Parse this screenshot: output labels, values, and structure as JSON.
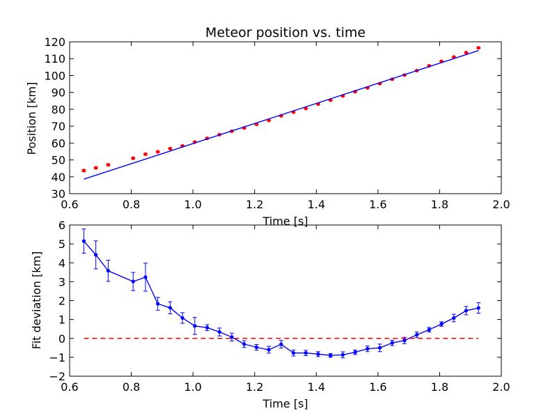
{
  "chart_data": [
    {
      "type": "scatter",
      "title": "Meteor position vs. time",
      "xlabel": "Time [s]",
      "ylabel": "Position [km]",
      "xlim": [
        0.6,
        2.0
      ],
      "ylim": [
        30,
        120
      ],
      "xticks": [
        "0.6",
        "0.8",
        "1.0",
        "1.2",
        "1.4",
        "1.6",
        "1.8",
        "2.0"
      ],
      "yticks": [
        "30",
        "40",
        "50",
        "60",
        "70",
        "80",
        "90",
        "100",
        "110",
        "120"
      ],
      "grid": false,
      "series": [
        {
          "kind": "points-with-errorbars",
          "color": "#ff0000",
          "x": [
            0.646,
            0.685,
            0.725,
            0.806,
            0.846,
            0.886,
            0.926,
            0.966,
            1.006,
            1.046,
            1.086,
            1.126,
            1.166,
            1.206,
            1.246,
            1.286,
            1.326,
            1.366,
            1.406,
            1.446,
            1.486,
            1.526,
            1.566,
            1.606,
            1.646,
            1.686,
            1.726,
            1.766,
            1.806,
            1.846,
            1.886,
            1.926
          ],
          "y": [
            43.7,
            45.3,
            47.1,
            51.0,
            53.4,
            54.8,
            56.7,
            58.3,
            60.6,
            62.8,
            65.0,
            67.0,
            68.9,
            71.1,
            73.4,
            76.1,
            78.3,
            80.5,
            83.1,
            85.4,
            87.9,
            90.4,
            92.7,
            95.2,
            97.8,
            100.3,
            102.9,
            105.8,
            108.4,
            111.0,
            113.6,
            116.4
          ],
          "yerr": [
            0.6,
            0.6,
            0.6,
            0.5,
            0.5,
            0.4,
            0.4,
            0.3,
            0.3,
            0.3,
            0.3,
            0.3,
            0.3,
            0.3,
            0.3,
            0.3,
            0.3,
            0.3,
            0.3,
            0.3,
            0.3,
            0.3,
            0.3,
            0.3,
            0.3,
            0.3,
            0.3,
            0.3,
            0.3,
            0.3,
            0.3,
            0.3
          ]
        },
        {
          "kind": "line",
          "color": "#0000ff",
          "x": [
            0.646,
            1.926
          ],
          "y": [
            38.6,
            114.8
          ]
        }
      ]
    },
    {
      "type": "line",
      "title": "",
      "xlabel": "Time [s]",
      "ylabel": "Fit deviation [km]",
      "xlim": [
        0.6,
        2.0
      ],
      "ylim": [
        -2,
        6
      ],
      "xticks": [
        "0.6",
        "0.8",
        "1.0",
        "1.2",
        "1.4",
        "1.6",
        "1.8",
        "2.0"
      ],
      "yticks": [
        "−2",
        "−1",
        "0",
        "1",
        "2",
        "3",
        "4",
        "5",
        "6"
      ],
      "grid": false,
      "series": [
        {
          "kind": "line-with-errorbars",
          "color": "#0000ff",
          "x": [
            0.646,
            0.685,
            0.725,
            0.806,
            0.846,
            0.886,
            0.926,
            0.966,
            1.006,
            1.046,
            1.086,
            1.126,
            1.166,
            1.206,
            1.246,
            1.286,
            1.326,
            1.366,
            1.406,
            1.446,
            1.486,
            1.526,
            1.566,
            1.606,
            1.646,
            1.686,
            1.726,
            1.766,
            1.806,
            1.846,
            1.886,
            1.926
          ],
          "y": [
            5.15,
            4.42,
            3.58,
            3.01,
            3.24,
            1.83,
            1.62,
            1.08,
            0.66,
            0.57,
            0.34,
            0.07,
            -0.3,
            -0.47,
            -0.6,
            -0.31,
            -0.77,
            -0.77,
            -0.83,
            -0.9,
            -0.87,
            -0.73,
            -0.55,
            -0.5,
            -0.24,
            -0.11,
            0.19,
            0.46,
            0.76,
            1.08,
            1.47,
            1.61
          ],
          "yerr": [
            0.64,
            0.74,
            0.56,
            0.48,
            0.74,
            0.34,
            0.32,
            0.28,
            0.45,
            0.16,
            0.21,
            0.21,
            0.18,
            0.15,
            0.18,
            0.2,
            0.16,
            0.14,
            0.13,
            0.1,
            0.16,
            0.12,
            0.15,
            0.2,
            0.14,
            0.17,
            0.15,
            0.12,
            0.12,
            0.2,
            0.22,
            0.28
          ]
        },
        {
          "kind": "dashed-line",
          "color": "#ff0000",
          "x": [
            0.646,
            1.926
          ],
          "y": [
            0,
            0
          ]
        }
      ]
    }
  ]
}
